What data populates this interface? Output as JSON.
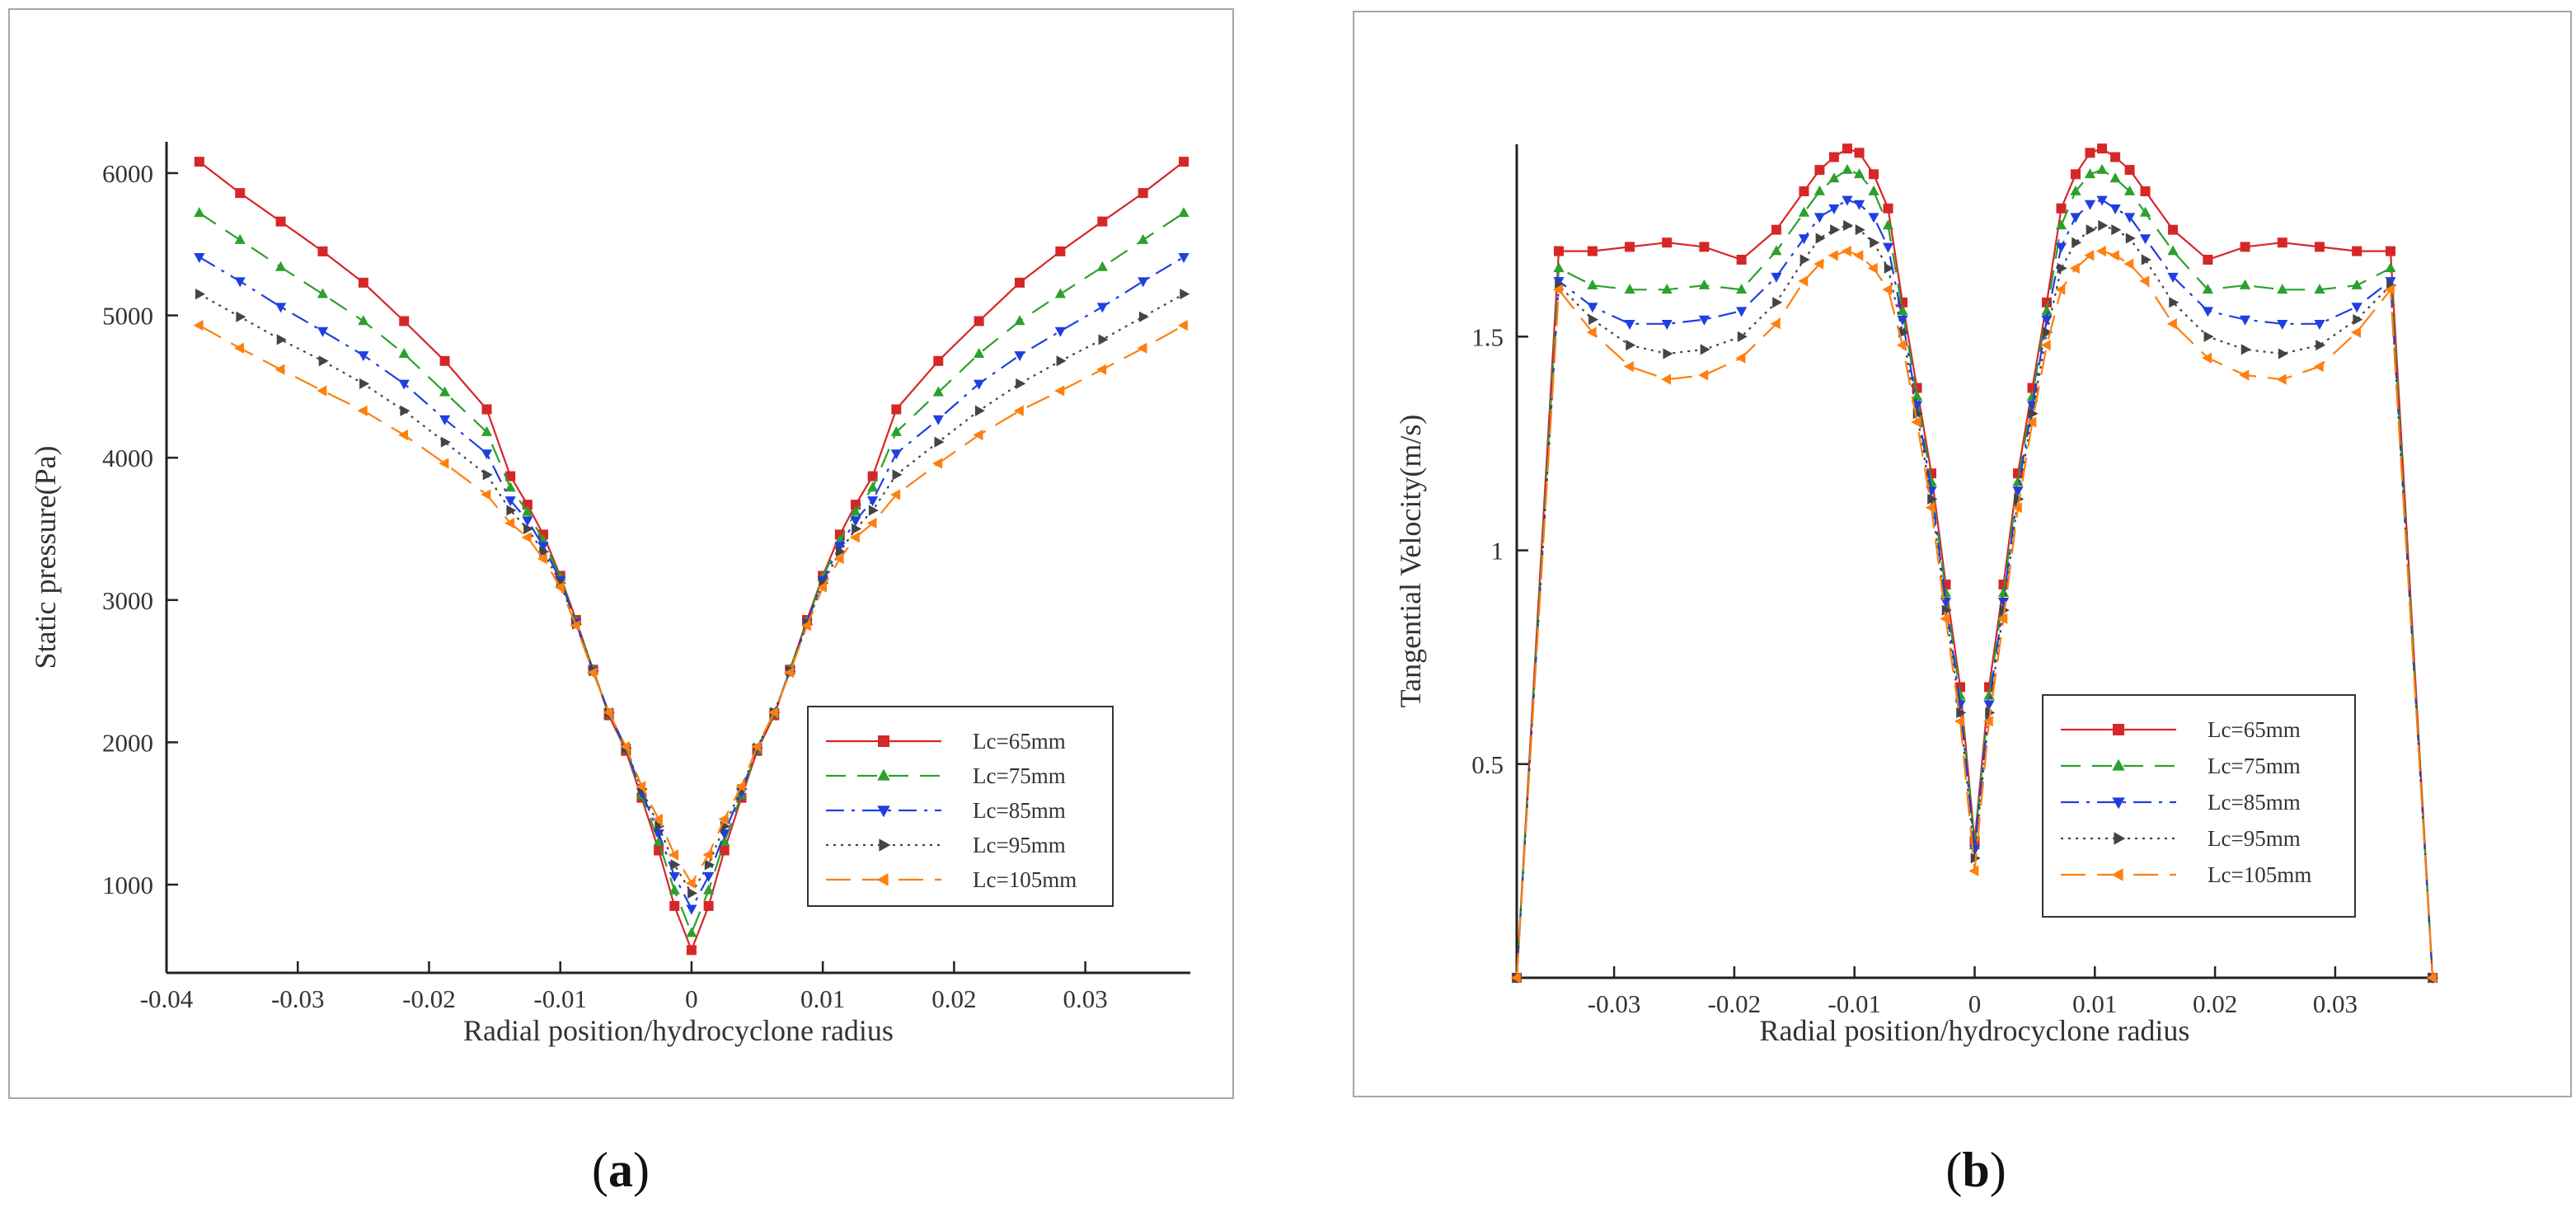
{
  "captions": {
    "a": "a",
    "b": "b"
  },
  "series_style": [
    {
      "name": "Lc=65mm",
      "color": "#d62728",
      "marker": "square",
      "dash": ""
    },
    {
      "name": "Lc=75mm",
      "color": "#2ca02c",
      "marker": "triangle-up",
      "dash": "24,14"
    },
    {
      "name": "Lc=85mm",
      "color": "#1f3fe0",
      "marker": "triangle-down",
      "dash": "22,9,4,9"
    },
    {
      "name": "Lc=95mm",
      "color": "#444444",
      "marker": "triangle-right",
      "dash": "3,6"
    },
    {
      "name": "Lc=105mm",
      "color": "#ff7f0e",
      "marker": "triangle-left",
      "dash": "30,14"
    }
  ],
  "chart_data": [
    {
      "id": "a",
      "type": "line",
      "title": "",
      "xlabel": "Radial position/hydrocyclone radius",
      "ylabel": "Static  pressure(Pa)",
      "xlim": [
        -0.04,
        0.038
      ],
      "ylim": [
        380,
        6220
      ],
      "xticks": [
        -0.04,
        -0.03,
        -0.02,
        -0.01,
        0,
        0.01,
        0.02,
        0.03
      ],
      "xtick_labels": [
        "-0.04",
        "-0.03",
        "-0.02",
        "-0.01",
        "0",
        "0.01",
        "0.02",
        "0.03"
      ],
      "yticks": [
        1000,
        2000,
        3000,
        4000,
        5000,
        6000
      ],
      "ytick_labels": [
        "1000",
        "2000",
        "3000",
        "4000",
        "5000",
        "6000"
      ],
      "legend_position": "bottom-right",
      "x": [
        -0.0375,
        -0.0344,
        -0.0313,
        -0.0281,
        -0.025,
        -0.0219,
        -0.0188,
        -0.0156,
        -0.0138,
        -0.0125,
        -0.0113,
        -0.01,
        -0.0088,
        -0.0075,
        -0.0063,
        -0.005,
        -0.0038,
        -0.0025,
        -0.0013,
        0,
        0.0013,
        0.0025,
        0.0038,
        0.005,
        0.0063,
        0.0075,
        0.0088,
        0.01,
        0.0113,
        0.0125,
        0.0138,
        0.0156,
        0.0188,
        0.0219,
        0.025,
        0.0281,
        0.0313,
        0.0344,
        0.0375
      ],
      "series": [
        {
          "name": "Lc=65mm",
          "values": [
            6080,
            5860,
            5660,
            5450,
            5230,
            4960,
            4680,
            4340,
            3870,
            3670,
            3460,
            3170,
            2860,
            2510,
            2190,
            1940,
            1610,
            1240,
            850,
            540,
            850,
            1240,
            1610,
            1940,
            2190,
            2510,
            2860,
            3170,
            3460,
            3670,
            3870,
            4340,
            4680,
            4960,
            5230,
            5450,
            5660,
            5860,
            6080
          ]
        },
        {
          "name": "Lc=75mm",
          "values": [
            5720,
            5530,
            5340,
            5150,
            4960,
            4730,
            4460,
            4180,
            3790,
            3620,
            3420,
            3160,
            2850,
            2510,
            2200,
            1950,
            1630,
            1300,
            960,
            660,
            960,
            1300,
            1630,
            1950,
            2200,
            2510,
            2850,
            3160,
            3420,
            3620,
            3790,
            4180,
            4460,
            4730,
            4960,
            5150,
            5340,
            5530,
            5720
          ]
        },
        {
          "name": "Lc=85mm",
          "values": [
            5410,
            5240,
            5060,
            4890,
            4720,
            4520,
            4270,
            4030,
            3700,
            3560,
            3380,
            3140,
            2840,
            2500,
            2210,
            1960,
            1650,
            1360,
            1060,
            830,
            1060,
            1360,
            1650,
            1960,
            2210,
            2500,
            2840,
            3140,
            3380,
            3560,
            3700,
            4030,
            4270,
            4520,
            4720,
            4890,
            5060,
            5240,
            5410
          ]
        },
        {
          "name": "Lc=95mm",
          "values": [
            5150,
            4990,
            4830,
            4680,
            4520,
            4330,
            4110,
            3880,
            3630,
            3500,
            3340,
            3120,
            2830,
            2500,
            2210,
            1960,
            1670,
            1410,
            1140,
            940,
            1140,
            1410,
            1670,
            1960,
            2210,
            2500,
            2830,
            3120,
            3340,
            3500,
            3630,
            3880,
            4110,
            4330,
            4520,
            4680,
            4830,
            4990,
            5150
          ]
        },
        {
          "name": "Lc=105mm",
          "values": [
            4930,
            4770,
            4620,
            4470,
            4330,
            4160,
            3960,
            3740,
            3540,
            3440,
            3290,
            3090,
            2820,
            2490,
            2210,
            1970,
            1690,
            1460,
            1210,
            1010,
            1210,
            1460,
            1690,
            1970,
            2210,
            2490,
            2820,
            3090,
            3290,
            3440,
            3540,
            3740,
            3960,
            4160,
            4330,
            4470,
            4620,
            4770,
            4930
          ]
        }
      ]
    },
    {
      "id": "b",
      "type": "line",
      "title": "",
      "xlabel": "Radial position/hydrocyclone radius",
      "ylabel": "Tangential Velocity(m/s)",
      "xlim": [
        -0.0381,
        0.0381
      ],
      "ylim": [
        0,
        1.95
      ],
      "xticks": [
        -0.03,
        -0.02,
        -0.01,
        0,
        0.01,
        0.02,
        0.03
      ],
      "xtick_labels": [
        "-0.03",
        "-0.02",
        "-0.01",
        "0",
        "0.01",
        "0.02",
        "0.03"
      ],
      "yticks": [
        0.5,
        1,
        1.5
      ],
      "ytick_labels": [
        "0.5",
        "1",
        "1.5"
      ],
      "legend_position": "bottom-right",
      "x": [
        -0.0381,
        -0.0346,
        -0.0318,
        -0.0287,
        -0.0256,
        -0.0225,
        -0.0194,
        -0.0165,
        -0.0142,
        -0.0129,
        -0.0117,
        -0.0106,
        -0.0096,
        -0.0084,
        -0.0072,
        -0.006,
        -0.0048,
        -0.0036,
        -0.0024,
        -0.0012,
        0,
        0.0012,
        0.0024,
        0.0036,
        0.0048,
        0.006,
        0.0072,
        0.0084,
        0.0096,
        0.0106,
        0.0117,
        0.0129,
        0.0142,
        0.0165,
        0.0194,
        0.0225,
        0.0256,
        0.0287,
        0.0318,
        0.0346,
        0.0381
      ],
      "series": [
        {
          "name": "Lc=65mm",
          "values": [
            0,
            1.7,
            1.7,
            1.71,
            1.72,
            1.71,
            1.68,
            1.75,
            1.84,
            1.89,
            1.92,
            1.94,
            1.93,
            1.88,
            1.8,
            1.58,
            1.38,
            1.18,
            0.92,
            0.68,
            0.32,
            0.68,
            0.92,
            1.18,
            1.38,
            1.58,
            1.8,
            1.88,
            1.93,
            1.94,
            1.92,
            1.89,
            1.84,
            1.75,
            1.68,
            1.71,
            1.72,
            1.71,
            1.7,
            1.7,
            0
          ]
        },
        {
          "name": "Lc=75mm",
          "values": [
            0,
            1.66,
            1.62,
            1.61,
            1.61,
            1.62,
            1.61,
            1.7,
            1.79,
            1.84,
            1.87,
            1.89,
            1.88,
            1.84,
            1.76,
            1.56,
            1.36,
            1.16,
            0.9,
            0.66,
            0.31,
            0.66,
            0.9,
            1.16,
            1.36,
            1.56,
            1.76,
            1.84,
            1.88,
            1.89,
            1.87,
            1.84,
            1.79,
            1.7,
            1.61,
            1.62,
            1.61,
            1.61,
            1.62,
            1.66,
            0
          ]
        },
        {
          "name": "Lc=85mm",
          "values": [
            0,
            1.63,
            1.57,
            1.53,
            1.53,
            1.54,
            1.56,
            1.64,
            1.73,
            1.78,
            1.8,
            1.82,
            1.81,
            1.78,
            1.71,
            1.54,
            1.34,
            1.14,
            0.88,
            0.64,
            0.3,
            0.64,
            0.88,
            1.14,
            1.34,
            1.54,
            1.71,
            1.78,
            1.81,
            1.82,
            1.8,
            1.78,
            1.73,
            1.64,
            1.56,
            1.54,
            1.53,
            1.53,
            1.57,
            1.63,
            0
          ]
        },
        {
          "name": "Lc=95mm",
          "values": [
            0,
            1.62,
            1.54,
            1.48,
            1.46,
            1.47,
            1.5,
            1.58,
            1.68,
            1.73,
            1.75,
            1.76,
            1.75,
            1.72,
            1.66,
            1.51,
            1.32,
            1.12,
            0.86,
            0.62,
            0.28,
            0.62,
            0.86,
            1.12,
            1.32,
            1.51,
            1.66,
            1.72,
            1.75,
            1.76,
            1.75,
            1.73,
            1.68,
            1.58,
            1.5,
            1.47,
            1.46,
            1.48,
            1.54,
            1.62,
            0
          ]
        },
        {
          "name": "Lc=105mm",
          "values": [
            0,
            1.61,
            1.51,
            1.43,
            1.4,
            1.41,
            1.45,
            1.53,
            1.63,
            1.67,
            1.69,
            1.7,
            1.69,
            1.66,
            1.61,
            1.48,
            1.3,
            1.1,
            0.84,
            0.6,
            0.25,
            0.6,
            0.84,
            1.1,
            1.3,
            1.48,
            1.61,
            1.66,
            1.69,
            1.7,
            1.69,
            1.67,
            1.63,
            1.53,
            1.45,
            1.41,
            1.4,
            1.43,
            1.51,
            1.61,
            0
          ]
        }
      ]
    }
  ]
}
